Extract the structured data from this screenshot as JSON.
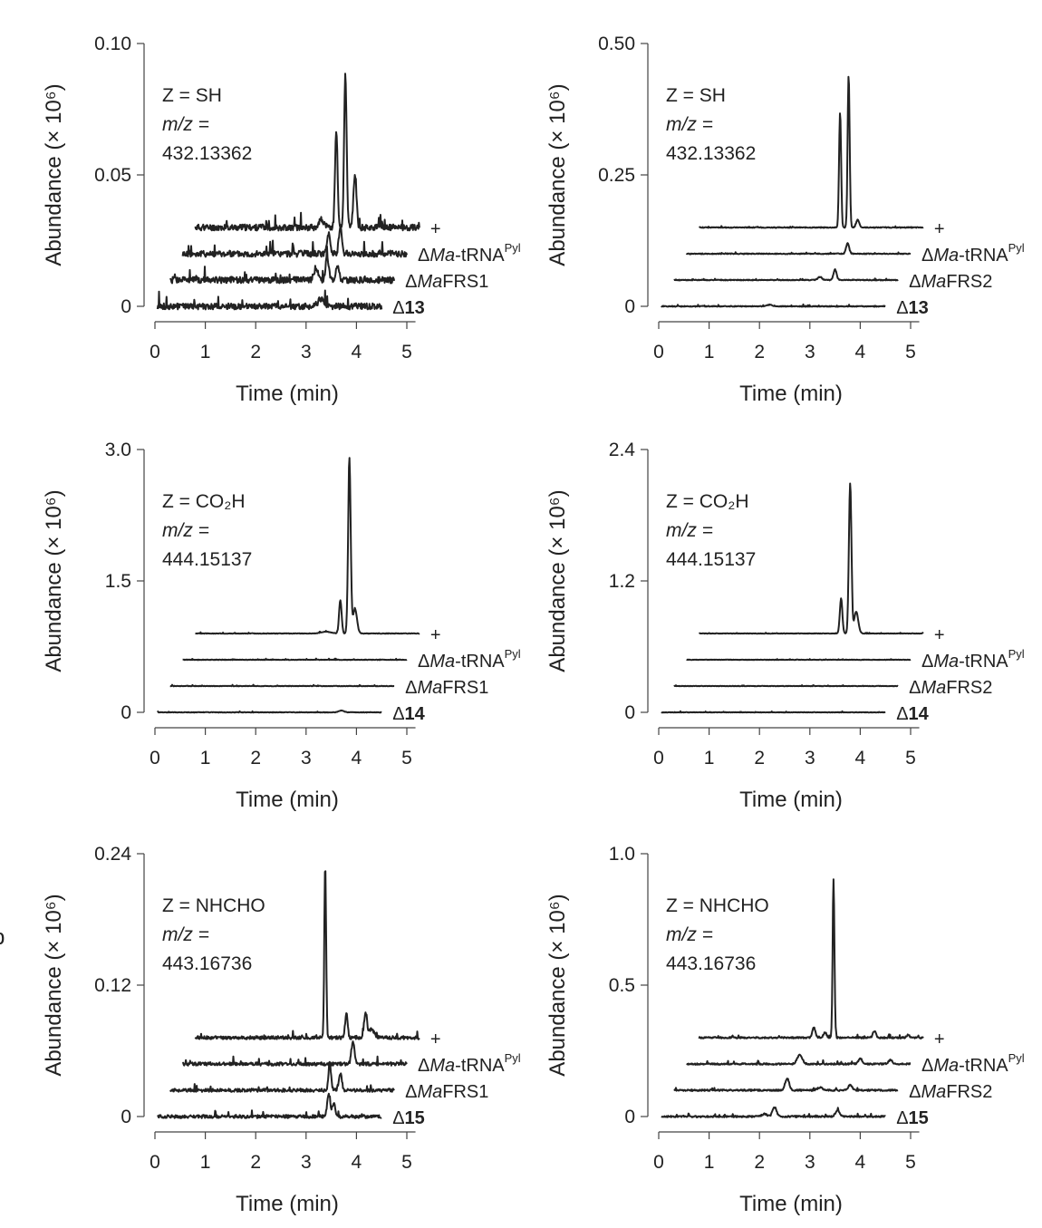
{
  "edge_letter": "b",
  "chart_data": [
    {
      "type": "line",
      "panel_text": [
        "Z = SH",
        "m/z =",
        "432.13362"
      ],
      "xlabel": "Time (min)",
      "ylabel": "Abundance (× 10⁶)",
      "xlim": [
        0,
        5.2
      ],
      "ylim": [
        0,
        0.1
      ],
      "x_ticks": [
        "0",
        "1",
        "2",
        "3",
        "4",
        "5"
      ],
      "y_ticks": [
        "0",
        "0.05",
        "0.10"
      ],
      "y_tick_values": [
        0,
        0.05,
        0.1
      ],
      "series": [
        {
          "name": "+",
          "baseline": 0.03,
          "x_start": 0.8,
          "noise": 0.0012,
          "peaks": [
            [
              3.6,
              0.037,
              0.025
            ],
            [
              3.78,
              0.058,
              0.025
            ],
            [
              3.97,
              0.02,
              0.03
            ],
            [
              3.3,
              0.003,
              0.05
            ]
          ]
        },
        {
          "name": "ΔMa-tRNA^Pyl",
          "baseline": 0.02,
          "x_start": 0.55,
          "noise": 0.0012,
          "peaks": [
            [
              3.45,
              0.008,
              0.03
            ],
            [
              3.68,
              0.01,
              0.03
            ]
          ]
        },
        {
          "name": "ΔMaFRS1",
          "baseline": 0.01,
          "x_start": 0.3,
          "noise": 0.0012,
          "peaks": [
            [
              3.2,
              0.005,
              0.04
            ],
            [
              3.42,
              0.009,
              0.03
            ],
            [
              3.62,
              0.006,
              0.03
            ]
          ]
        },
        {
          "name": "Δ13",
          "bold_suffix": "13",
          "baseline": 0.0,
          "x_start": 0.05,
          "noise": 0.0012,
          "peaks": [
            [
              3.3,
              0.003,
              0.06
            ]
          ]
        }
      ]
    },
    {
      "type": "line",
      "panel_text": [
        "Z = SH",
        "m/z =",
        "432.13362"
      ],
      "xlabel": "Time (min)",
      "ylabel": "Abundance (× 10⁶)",
      "xlim": [
        0,
        5.2
      ],
      "ylim": [
        0,
        0.5
      ],
      "x_ticks": [
        "0",
        "1",
        "2",
        "3",
        "4",
        "5"
      ],
      "y_ticks": [
        "0",
        "0.25",
        "0.50"
      ],
      "y_tick_values": [
        0,
        0.25,
        0.5
      ],
      "series": [
        {
          "name": "+",
          "baseline": 0.15,
          "x_start": 0.8,
          "noise": 0.0008,
          "peaks": [
            [
              3.6,
              0.22,
              0.02
            ],
            [
              3.77,
              0.29,
              0.02
            ],
            [
              3.95,
              0.015,
              0.03
            ]
          ]
        },
        {
          "name": "ΔMa-tRNA^Pyl",
          "baseline": 0.1,
          "x_start": 0.55,
          "noise": 0.0008,
          "peaks": [
            [
              3.75,
              0.02,
              0.03
            ]
          ]
        },
        {
          "name": "ΔMaFRS2",
          "baseline": 0.05,
          "x_start": 0.3,
          "noise": 0.0008,
          "peaks": [
            [
              3.5,
              0.02,
              0.03
            ],
            [
              3.2,
              0.006,
              0.04
            ]
          ]
        },
        {
          "name": "Δ13",
          "bold_suffix": "13",
          "baseline": 0.0,
          "x_start": 0.05,
          "noise": 0.0008,
          "peaks": [
            [
              2.2,
              0.003,
              0.05
            ]
          ]
        }
      ]
    },
    {
      "type": "line",
      "panel_text": [
        "Z = CO₂H",
        "m/z =",
        "444.15137"
      ],
      "xlabel": "Time (min)",
      "ylabel": "Abundance (× 10⁶)",
      "xlim": [
        0,
        5.2
      ],
      "ylim": [
        0,
        3.0
      ],
      "x_ticks": [
        "0",
        "1",
        "2",
        "3",
        "4",
        "5"
      ],
      "y_ticks": [
        "0",
        "1.5",
        "3.0"
      ],
      "y_tick_values": [
        0,
        1.5,
        3.0
      ],
      "series": [
        {
          "name": "+",
          "baseline": 0.9,
          "x_start": 0.8,
          "noise": 0.003,
          "peaks": [
            [
              3.68,
              0.38,
              0.025
            ],
            [
              3.86,
              2.0,
              0.025
            ],
            [
              3.97,
              0.28,
              0.04
            ],
            [
              3.4,
              0.02,
              0.1
            ]
          ]
        },
        {
          "name": "ΔMa-tRNA^Pyl",
          "baseline": 0.6,
          "x_start": 0.55,
          "noise": 0.003,
          "peaks": []
        },
        {
          "name": "ΔMaFRS1",
          "baseline": 0.3,
          "x_start": 0.3,
          "noise": 0.003,
          "peaks": []
        },
        {
          "name": "Δ14",
          "bold_suffix": "14",
          "baseline": 0.0,
          "x_start": 0.05,
          "noise": 0.003,
          "peaks": [
            [
              3.7,
              0.02,
              0.05
            ]
          ]
        }
      ]
    },
    {
      "type": "line",
      "panel_text": [
        "Z = CO₂H",
        "m/z =",
        "444.15137"
      ],
      "xlabel": "Time (min)",
      "ylabel": "Abundance (× 10⁶)",
      "xlim": [
        0,
        5.2
      ],
      "ylim": [
        0,
        2.4
      ],
      "x_ticks": [
        "0",
        "1",
        "2",
        "3",
        "4",
        "5"
      ],
      "y_ticks": [
        "0",
        "1.2",
        "2.4"
      ],
      "y_tick_values": [
        0,
        1.2,
        2.4
      ],
      "series": [
        {
          "name": "+",
          "baseline": 0.72,
          "x_start": 0.8,
          "noise": 0.002,
          "peaks": [
            [
              3.62,
              0.32,
              0.025
            ],
            [
              3.8,
              1.37,
              0.025
            ],
            [
              3.92,
              0.2,
              0.04
            ]
          ]
        },
        {
          "name": "ΔMa-tRNA^Pyl",
          "baseline": 0.48,
          "x_start": 0.55,
          "noise": 0.002,
          "peaks": []
        },
        {
          "name": "ΔMaFRS2",
          "baseline": 0.24,
          "x_start": 0.3,
          "noise": 0.002,
          "peaks": []
        },
        {
          "name": "Δ14",
          "bold_suffix": "14",
          "baseline": 0.0,
          "x_start": 0.05,
          "noise": 0.002,
          "peaks": []
        }
      ]
    },
    {
      "type": "line",
      "panel_text": [
        "Z = NHCHO",
        "m/z =",
        "443.16736"
      ],
      "xlabel": "Time (min)",
      "ylabel": "Abundance (× 10⁶)",
      "xlim": [
        0,
        5.2
      ],
      "ylim": [
        0,
        0.24
      ],
      "x_ticks": [
        "0",
        "1",
        "2",
        "3",
        "4",
        "5"
      ],
      "y_ticks": [
        "0",
        "0.12",
        "0.24"
      ],
      "y_tick_values": [
        0,
        0.12,
        0.24
      ],
      "series": [
        {
          "name": "+",
          "baseline": 0.072,
          "x_start": 0.8,
          "noise": 0.0015,
          "peaks": [
            [
              3.38,
              0.158,
              0.018
            ],
            [
              3.8,
              0.022,
              0.025
            ],
            [
              4.18,
              0.022,
              0.03
            ],
            [
              4.3,
              0.008,
              0.05
            ]
          ]
        },
        {
          "name": "ΔMa-tRNA^Pyl",
          "baseline": 0.048,
          "x_start": 0.55,
          "noise": 0.0015,
          "peaks": [
            [
              3.93,
              0.02,
              0.03
            ]
          ]
        },
        {
          "name": "ΔMaFRS1",
          "baseline": 0.024,
          "x_start": 0.3,
          "noise": 0.0015,
          "peaks": [
            [
              3.47,
              0.025,
              0.025
            ],
            [
              3.68,
              0.015,
              0.03
            ]
          ]
        },
        {
          "name": "Δ15",
          "bold_suffix": "15",
          "baseline": 0.0,
          "x_start": 0.05,
          "noise": 0.0015,
          "peaks": [
            [
              3.45,
              0.02,
              0.03
            ],
            [
              3.55,
              0.012,
              0.03
            ]
          ]
        }
      ]
    },
    {
      "type": "line",
      "panel_text": [
        "Z = NHCHO",
        "m/z =",
        "443.16736"
      ],
      "xlabel": "Time (min)",
      "ylabel": "Abundance (× 10⁶)",
      "xlim": [
        0,
        5.2
      ],
      "ylim": [
        0,
        1.0
      ],
      "x_ticks": [
        "0",
        "1",
        "2",
        "3",
        "4",
        "5"
      ],
      "y_ticks": [
        "0",
        "0.5",
        "1.0"
      ],
      "y_tick_values": [
        0,
        0.5,
        1.0
      ],
      "series": [
        {
          "name": "+",
          "baseline": 0.3,
          "x_start": 0.8,
          "noise": 0.003,
          "peaks": [
            [
              3.47,
              0.6,
              0.018
            ],
            [
              3.08,
              0.04,
              0.03
            ],
            [
              3.3,
              0.02,
              0.03
            ],
            [
              4.28,
              0.025,
              0.03
            ],
            [
              4.95,
              0.01,
              0.03
            ]
          ]
        },
        {
          "name": "ΔMa-tRNA^Pyl",
          "baseline": 0.2,
          "x_start": 0.55,
          "noise": 0.003,
          "peaks": [
            [
              2.8,
              0.035,
              0.05
            ],
            [
              4.0,
              0.02,
              0.04
            ],
            [
              4.6,
              0.015,
              0.04
            ]
          ]
        },
        {
          "name": "ΔMaFRS2",
          "baseline": 0.1,
          "x_start": 0.3,
          "noise": 0.003,
          "peaks": [
            [
              2.55,
              0.045,
              0.04
            ],
            [
              3.8,
              0.02,
              0.04
            ],
            [
              3.2,
              0.01,
              0.05
            ]
          ]
        },
        {
          "name": "Δ15",
          "bold_suffix": "15",
          "baseline": 0.0,
          "x_start": 0.05,
          "noise": 0.003,
          "peaks": [
            [
              2.3,
              0.035,
              0.04
            ],
            [
              3.55,
              0.025,
              0.04
            ],
            [
              2.1,
              0.01,
              0.05
            ]
          ]
        }
      ]
    }
  ]
}
